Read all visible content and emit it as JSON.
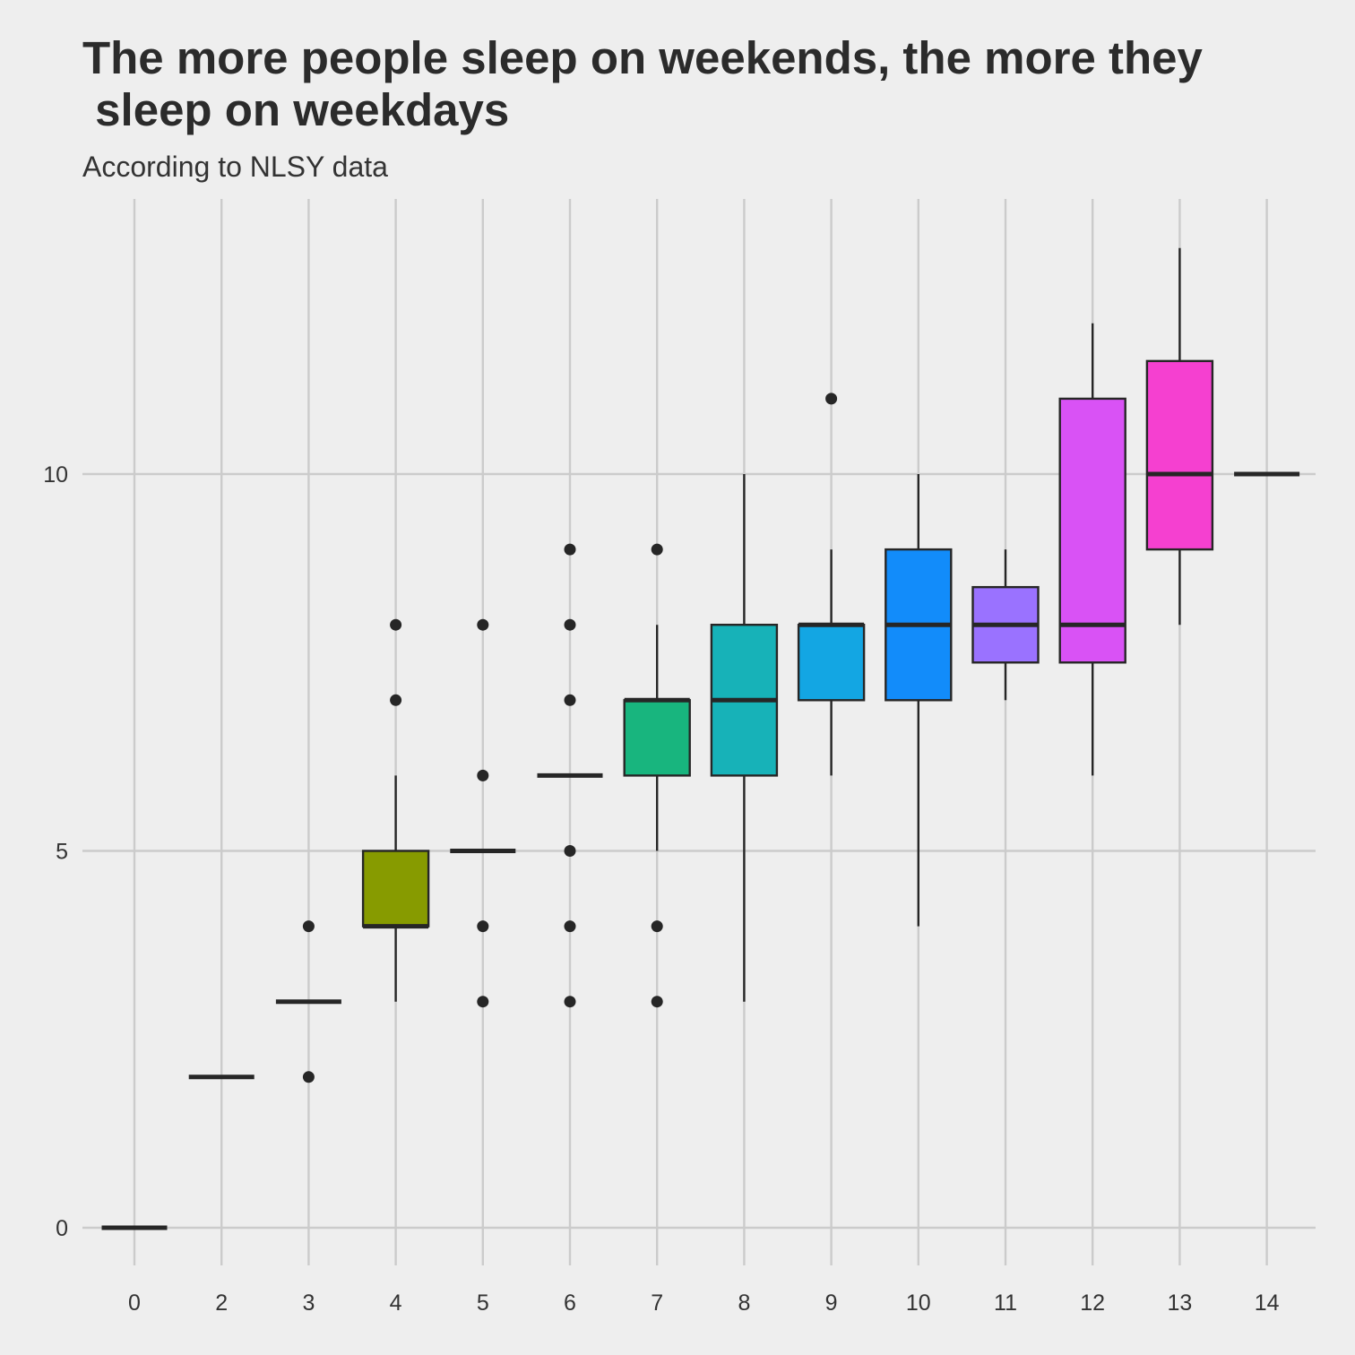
{
  "chart_data": {
    "type": "boxplot",
    "title": "The more people sleep on weekends, the more they\n sleep on weekdays",
    "subtitle": "According to NLSY data",
    "xlabel": "",
    "ylabel": "",
    "categories": [
      "0",
      "2",
      "3",
      "4",
      "5",
      "6",
      "7",
      "8",
      "9",
      "10",
      "11",
      "12",
      "13",
      "14"
    ],
    "ylim": [
      -0.35,
      13.7
    ],
    "yticks": [
      0,
      5,
      10
    ],
    "grid": true,
    "legend": "none",
    "boxes": [
      {
        "category": "0",
        "q1": 0,
        "median": 0,
        "q3": 0,
        "lower": 0,
        "upper": 0,
        "outliers": [],
        "color": "#F8766D"
      },
      {
        "category": "2",
        "q1": 2,
        "median": 2,
        "q3": 2,
        "lower": 2,
        "upper": 2,
        "outliers": [],
        "color": "#E58700"
      },
      {
        "category": "3",
        "q1": 3,
        "median": 3,
        "q3": 3,
        "lower": 3,
        "upper": 3,
        "outliers": [
          4,
          2
        ],
        "color": "#C99800"
      },
      {
        "category": "4",
        "q1": 4,
        "median": 4,
        "q3": 5,
        "lower": 3,
        "upper": 6,
        "outliers": [
          8,
          7
        ],
        "color": "#879B00"
      },
      {
        "category": "5",
        "q1": 5,
        "median": 5,
        "q3": 5,
        "lower": 5,
        "upper": 5,
        "outliers": [
          8,
          6,
          4,
          3
        ],
        "color": "#53B400"
      },
      {
        "category": "6",
        "q1": 6,
        "median": 6,
        "q3": 6,
        "lower": 6,
        "upper": 6,
        "outliers": [
          9,
          8,
          7,
          5,
          4,
          3
        ],
        "color": "#00BC56"
      },
      {
        "category": "7",
        "q1": 6,
        "median": 7,
        "q3": 7,
        "lower": 5,
        "upper": 8,
        "outliers": [
          9,
          4,
          3
        ],
        "color": "#18B57E"
      },
      {
        "category": "8",
        "q1": 6,
        "median": 7,
        "q3": 8,
        "lower": 3,
        "upper": 10,
        "outliers": [],
        "color": "#17B2B8"
      },
      {
        "category": "9",
        "q1": 7,
        "median": 8,
        "q3": 8,
        "lower": 6,
        "upper": 9,
        "outliers": [
          11
        ],
        "color": "#13A6E3"
      },
      {
        "category": "10",
        "q1": 7,
        "median": 8,
        "q3": 9,
        "lower": 4,
        "upper": 10,
        "outliers": [],
        "color": "#128CFA"
      },
      {
        "category": "11",
        "q1": 7.5,
        "median": 8,
        "q3": 8.5,
        "lower": 7,
        "upper": 9,
        "outliers": [],
        "color": "#9A72FF"
      },
      {
        "category": "12",
        "q1": 7.5,
        "median": 8,
        "q3": 11,
        "lower": 6,
        "upper": 12,
        "outliers": [],
        "color": "#D952F5"
      },
      {
        "category": "13",
        "q1": 9,
        "median": 10,
        "q3": 11.5,
        "lower": 8,
        "upper": 13,
        "outliers": [],
        "color": "#F540D0"
      },
      {
        "category": "14",
        "q1": 10,
        "median": 10,
        "q3": 10,
        "lower": 10,
        "upper": 10,
        "outliers": [],
        "color": "#FB61D7"
      }
    ]
  }
}
